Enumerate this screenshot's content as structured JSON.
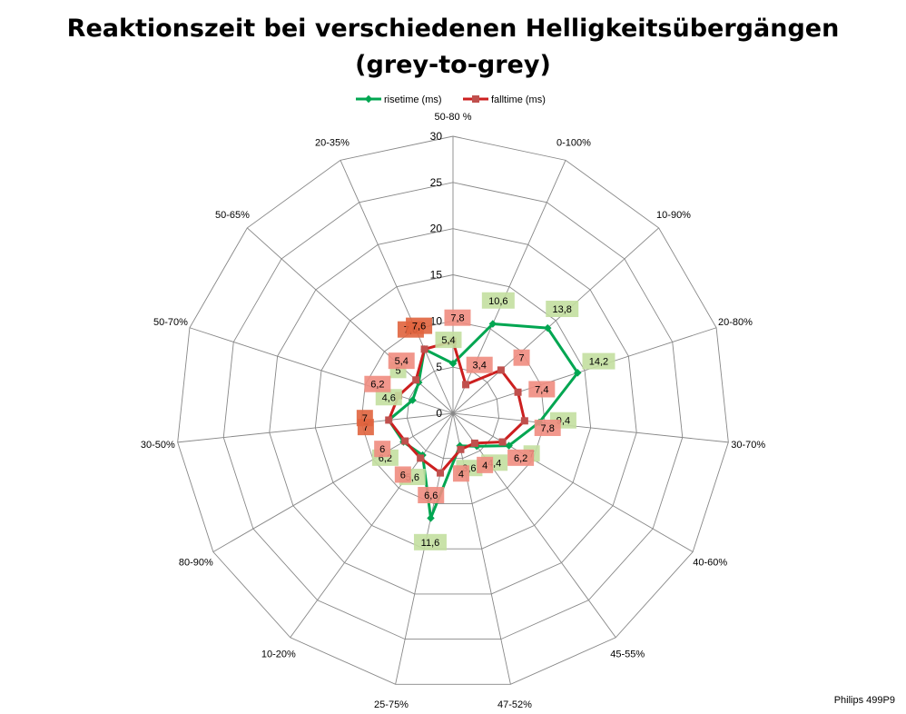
{
  "chart_data": {
    "type": "radar",
    "title_lines": [
      "Reaktionszeit bei verschiedenen Helligkeitsübergängen",
      "(grey-to-grey)"
    ],
    "categories": [
      "50-80 %",
      "0-100%",
      "10-90%",
      "20-80%",
      "30-70%",
      "40-60%",
      "45-55%",
      "47-52%",
      "25-75%",
      "10-20%",
      "80-90%",
      "30-50%",
      "50-70%",
      "50-65%",
      "20-35%"
    ],
    "series": [
      {
        "name": "risetime (ms)",
        "color": "#00a651",
        "label_bg": "#c3dfa0",
        "values": [
          5.4,
          10.6,
          13.8,
          14.2,
          9.4,
          7,
          4.4,
          3.6,
          11.6,
          5.6,
          6.2,
          7,
          4.6,
          5,
          7.6
        ]
      },
      {
        "name": "falltime (ms)",
        "color": "#cc1f1f",
        "label_bg": "#f08c80",
        "values": [
          7.8,
          3.4,
          7,
          7.4,
          7.8,
          6.2,
          4,
          4,
          6.6,
          6,
          6,
          7,
          6.2,
          5.4,
          7.6
        ]
      }
    ],
    "label_bg_overlap": "#e0643e",
    "r_axis": {
      "min": 0,
      "max": 30,
      "step": 5,
      "ticks": [
        "0",
        "5",
        "10",
        "15",
        "20",
        "25",
        "30"
      ]
    },
    "grid": true,
    "legend_position": "top"
  },
  "footer": {
    "credit": "Philips 499P9"
  }
}
